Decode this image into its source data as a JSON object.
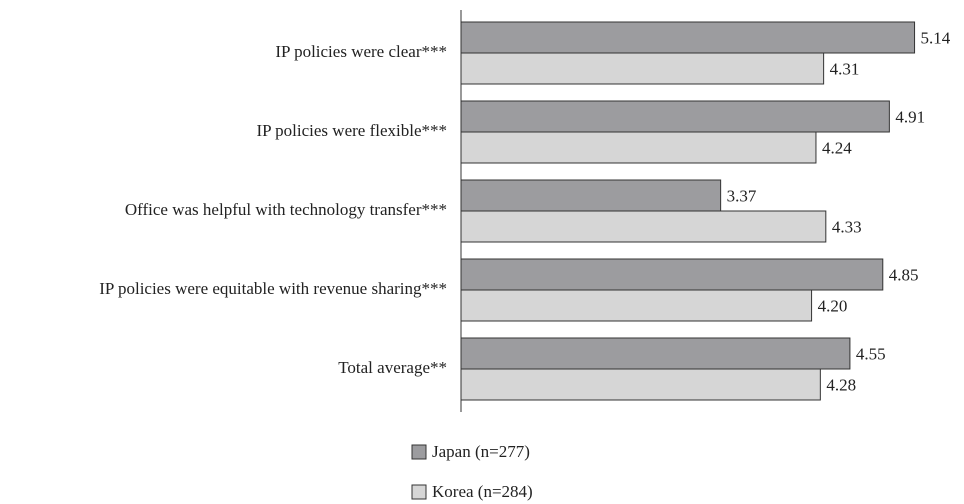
{
  "chart_data": {
    "type": "hbar",
    "categories": [
      "IP policies were clear***",
      "IP policies were flexible***",
      "Office was helpful with technology transfer***",
      "IP policies were equitable with revenue sharing***",
      "Total average**"
    ],
    "series": [
      {
        "name": "Japan (n=277)",
        "color": "#9c9c9f",
        "values": [
          5.14,
          4.91,
          3.37,
          4.85,
          4.55
        ],
        "value_labels": [
          "5.14",
          "4.91",
          "3.37",
          "4.85",
          "4.55"
        ]
      },
      {
        "name": "Korea (n=284)",
        "color": "#d6d6d6",
        "values": [
          4.31,
          4.24,
          4.33,
          4.2,
          4.28
        ],
        "value_labels": [
          "4.31",
          "4.24",
          "4.33",
          "4.20",
          "4.28"
        ]
      }
    ],
    "xlim": [
      1,
      5.5
    ]
  }
}
